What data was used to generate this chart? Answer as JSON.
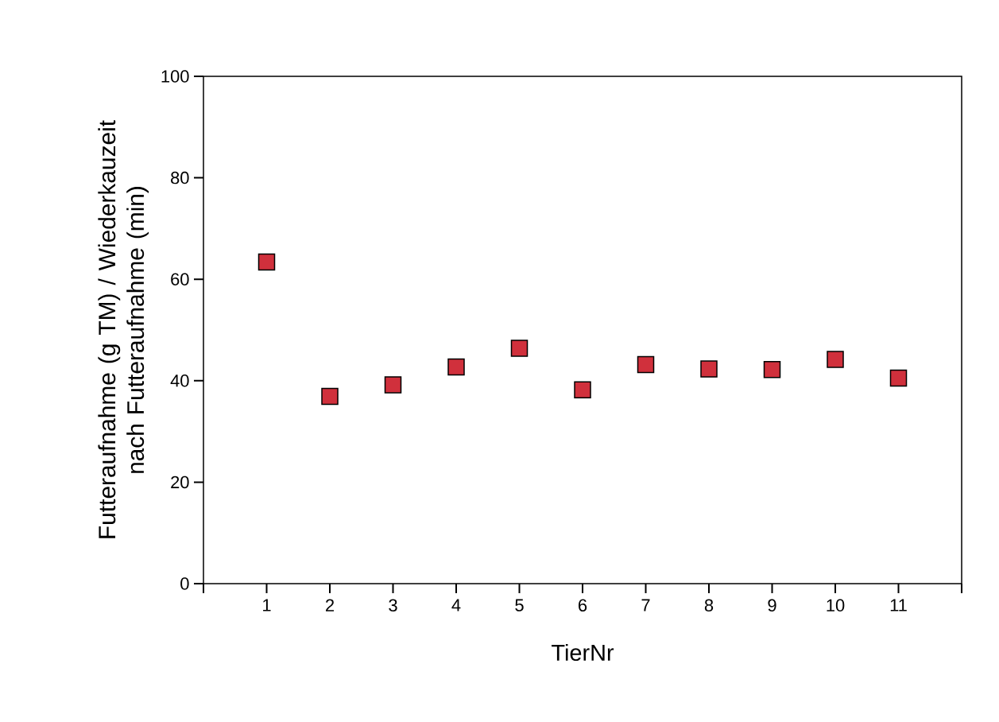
{
  "chart_data": {
    "type": "scatter",
    "xlabel": "TierNr",
    "ylabel": "Futteraufnahme (g TM) / Wiederkauzeit nach Futteraufnahme (min)",
    "x": [
      1,
      2,
      3,
      4,
      5,
      6,
      7,
      8,
      9,
      10,
      11
    ],
    "series": [
      {
        "color": "#d0303c",
        "values": [
          63.4,
          36.9,
          39.2,
          42.7,
          46.4,
          38.2,
          43.2,
          42.3,
          42.2,
          44.2,
          40.5
        ]
      }
    ],
    "xlim": [
      0,
      12
    ],
    "xticks": [
      {
        "value": 0,
        "label": null
      },
      1,
      2,
      3,
      4,
      5,
      6,
      7,
      8,
      9,
      10,
      11,
      {
        "value": 12,
        "label": null
      }
    ],
    "ylim": [
      0,
      100
    ],
    "yticks": [
      0,
      20,
      40,
      60,
      80,
      100
    ],
    "marker": "square"
  }
}
